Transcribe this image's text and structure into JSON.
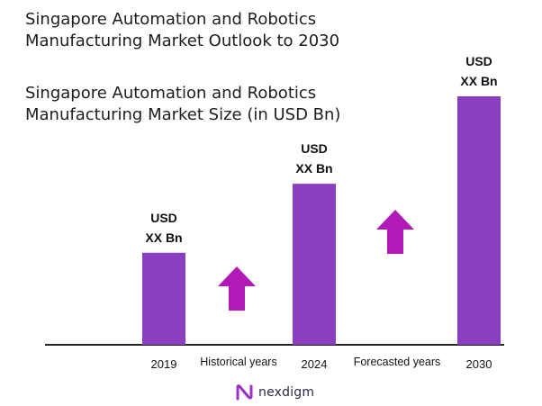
{
  "title_lines": [
    "Singapore Automation and Robotics",
    "Manufacturing Market Outlook to 2030"
  ],
  "subtitle_lines": [
    "Singapore Automation and Robotics",
    "Manufacturing Market Size (in USD Bn)"
  ],
  "colors": {
    "bar": "#8a3fc0",
    "arrow": "#b21ab8",
    "axis": "#222222",
    "logo_mark": "#9b2fc7"
  },
  "chart_data": {
    "type": "bar",
    "categories": [
      "2019",
      "2024",
      "2030"
    ],
    "values": [
      1.0,
      1.75,
      2.7
    ],
    "value_labels": [
      [
        "USD",
        "XX Bn"
      ],
      [
        "USD",
        "XX Bn"
      ],
      [
        "USD",
        "XX Bn"
      ]
    ],
    "annotations": [
      {
        "text": "Historical years",
        "between": [
          "2019",
          "2024"
        ],
        "icon": "up-arrow-icon"
      },
      {
        "text": "Forecasted years",
        "between": [
          "2024",
          "2030"
        ],
        "icon": "up-arrow-icon"
      }
    ],
    "title": "Singapore Automation and Robotics Manufacturing Market Size (in USD Bn)",
    "grid": false,
    "legend": "none",
    "ylim": [
      0,
      2.7
    ]
  },
  "logo": {
    "text": "nexdigm",
    "icon": "nexdigm-logo-icon"
  }
}
